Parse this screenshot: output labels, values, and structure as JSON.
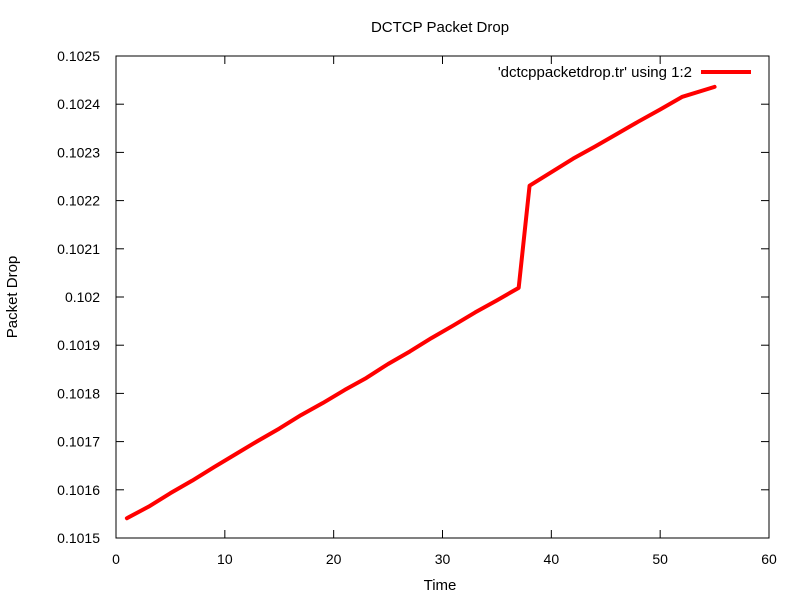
{
  "chart_data": {
    "type": "line",
    "title": "DCTCP Packet Drop",
    "xlabel": "Time",
    "ylabel": "Packet Drop",
    "xlim": [
      0,
      60
    ],
    "ylim": [
      0.1015,
      0.1025
    ],
    "x_ticks": [
      0,
      10,
      20,
      30,
      40,
      50,
      60
    ],
    "x_tick_labels": [
      "0",
      "10",
      "20",
      "30",
      "40",
      "50",
      "60"
    ],
    "y_ticks": [
      0.1015,
      0.1016,
      0.1017,
      0.1018,
      0.1019,
      0.102,
      0.1021,
      0.1022,
      0.1023,
      0.1024,
      0.1025
    ],
    "y_tick_labels": [
      "0.1015",
      "0.1016",
      "0.1017",
      "0.1018",
      "0.1019",
      "0.102",
      "0.1021",
      "0.1022",
      "0.1023",
      "0.1024",
      "0.1025"
    ],
    "grid": false,
    "legend": "top-right",
    "series": [
      {
        "name": "'dctcppacketdrop.tr' using 1:2",
        "color": "#ff0000",
        "x": [
          1,
          3,
          5,
          7,
          9,
          11,
          13,
          15,
          17,
          19,
          21,
          23,
          25,
          27,
          29,
          31,
          33,
          35,
          37,
          38,
          40,
          42,
          44,
          46,
          48,
          50,
          52,
          55
        ],
        "y": [
          0.101541,
          0.101565,
          0.101593,
          0.101619,
          0.101647,
          0.101674,
          0.101701,
          0.101727,
          0.101755,
          0.10178,
          0.101807,
          0.101832,
          0.101861,
          0.101887,
          0.101915,
          0.101941,
          0.101968,
          0.101993,
          0.102019,
          0.102231,
          0.102259,
          0.102287,
          0.102312,
          0.102338,
          0.102364,
          0.102389,
          0.102415,
          0.102436
        ]
      }
    ]
  }
}
